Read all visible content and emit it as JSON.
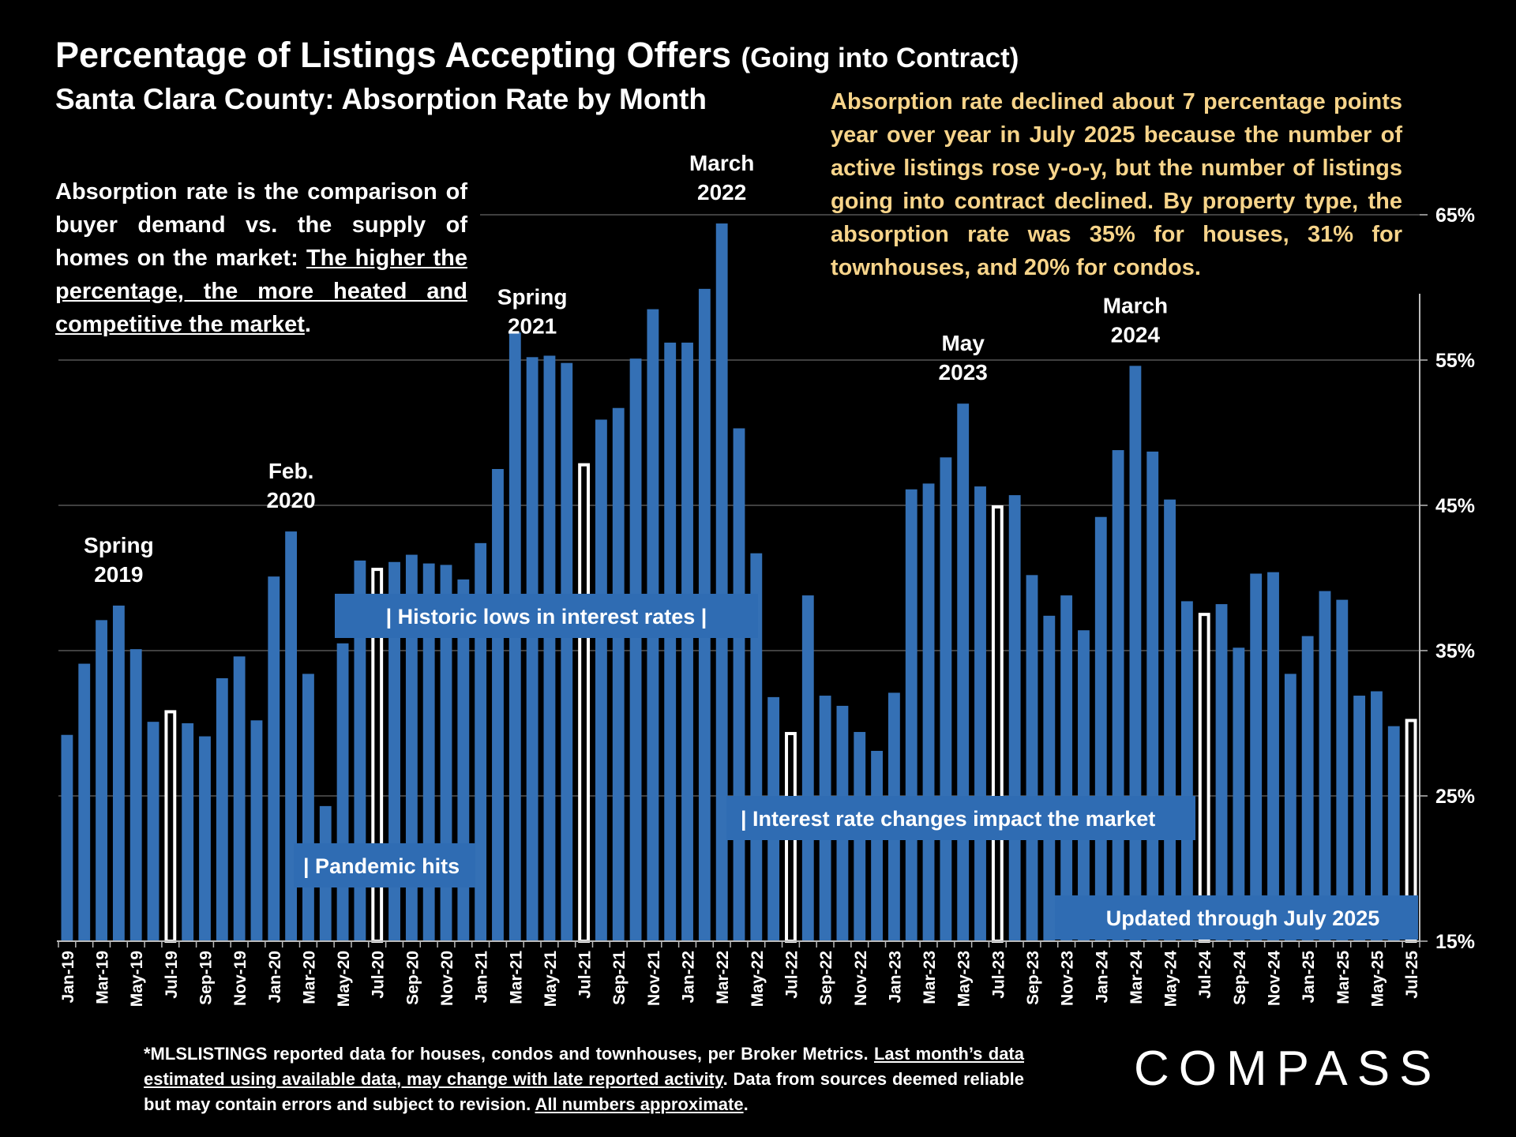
{
  "header": {
    "title": "Percentage of Listings Accepting Offers",
    "title_paren": "(Going into Contract)",
    "subtitle": "Santa Clara County:  Absorption Rate by Month"
  },
  "definition": {
    "lead": "Absorption rate is the comparison of buyer demand vs. the supply of homes on the market: ",
    "underlined": "The higher the percentage, the more heated and competitive the market",
    "tail": "."
  },
  "insight": "Absorption rate declined about 7 percentage points year over year in July 2025 because the number of active listings rose y-o-y, but the number of listings going into contract declined. By property type, the absorption rate was 35% for houses, 31% for townhouses, and 20% for condos.",
  "footnote": {
    "part1": "*MLSLISTINGS reported data for houses, condos and townhouses, per Broker Metrics. ",
    "part2_underlined": "Last month’s data estimated using available data, may change with late reported activity",
    "part3": ". Data from sources deemed reliable but may contain errors and subject to revision. ",
    "part4_underlined": "All numbers approximate",
    "part5": "."
  },
  "logo_text": "COMPASS",
  "colors": {
    "bar": "#3470b5",
    "highlight_bar": "#ffffff",
    "insight_text": "#f7d48a",
    "grid": "#555555",
    "banner": "#2f6cb3"
  },
  "chart_data": {
    "type": "bar",
    "title": "Santa Clara County:  Absorption Rate by Month",
    "ylim": [
      15,
      65
    ],
    "ytick_labels": [
      "15%",
      "25%",
      "35%",
      "45%",
      "55%",
      "65%"
    ],
    "y_axis_side": "right",
    "grid": true,
    "xtick_labels": [
      "Jan-19",
      "Mar-19",
      "May-19",
      "Jul-19",
      "Sep-19",
      "Nov-19",
      "Jan-20",
      "Mar-20",
      "May-20",
      "Jul-20",
      "Sep-20",
      "Nov-20",
      "Jan-21",
      "Mar-21",
      "May-21",
      "Jul-21",
      "Sep-21",
      "Nov-21",
      "Jan-22",
      "Mar-22",
      "May-22",
      "Jul-22",
      "Sep-22",
      "Nov-22",
      "Jan-23",
      "Mar-23",
      "May-23",
      "Jul-23",
      "Sep-23",
      "Nov-23",
      "Jan-24",
      "Mar-24",
      "May-24",
      "Jul-24",
      "Sep-24",
      "Nov-24",
      "Jan-25",
      "Mar-25",
      "May-25",
      "Jul-25"
    ],
    "categories": [
      "Jan-19",
      "Feb-19",
      "Mar-19",
      "Apr-19",
      "May-19",
      "Jun-19",
      "Jul-19",
      "Aug-19",
      "Sep-19",
      "Oct-19",
      "Nov-19",
      "Dec-19",
      "Jan-20",
      "Feb-20",
      "Mar-20",
      "Apr-20",
      "May-20",
      "Jun-20",
      "Jul-20",
      "Aug-20",
      "Sep-20",
      "Oct-20",
      "Nov-20",
      "Dec-20",
      "Jan-21",
      "Feb-21",
      "Mar-21",
      "Apr-21",
      "May-21",
      "Jun-21",
      "Jul-21",
      "Aug-21",
      "Sep-21",
      "Oct-21",
      "Nov-21",
      "Dec-21",
      "Jan-22",
      "Feb-22",
      "Mar-22",
      "Apr-22",
      "May-22",
      "Jun-22",
      "Jul-22",
      "Aug-22",
      "Sep-22",
      "Oct-22",
      "Nov-22",
      "Dec-22",
      "Jan-23",
      "Feb-23",
      "Mar-23",
      "Apr-23",
      "May-23",
      "Jun-23",
      "Jul-23",
      "Aug-23",
      "Sep-23",
      "Oct-23",
      "Nov-23",
      "Dec-23",
      "Jan-24",
      "Feb-24",
      "Mar-24",
      "Apr-24",
      "May-24",
      "Jun-24",
      "Jul-24",
      "Aug-24",
      "Sep-24",
      "Oct-24",
      "Nov-24",
      "Dec-24",
      "Jan-25",
      "Feb-25",
      "Mar-25",
      "Apr-25",
      "May-25",
      "Jun-25",
      "Jul-25"
    ],
    "values": [
      29.2,
      34.1,
      37.1,
      38.1,
      35.1,
      30.1,
      30.9,
      30.0,
      29.1,
      33.1,
      34.6,
      30.2,
      40.1,
      43.2,
      33.4,
      24.3,
      35.5,
      41.2,
      40.7,
      41.1,
      41.6,
      41.0,
      40.9,
      39.9,
      42.4,
      47.5,
      56.9,
      55.2,
      55.3,
      54.8,
      47.9,
      50.9,
      51.7,
      55.1,
      58.5,
      56.2,
      56.2,
      59.9,
      64.4,
      50.3,
      41.7,
      31.8,
      29.4,
      38.8,
      31.9,
      31.2,
      29.4,
      28.1,
      32.1,
      46.1,
      46.5,
      48.3,
      52.0,
      46.3,
      45.0,
      45.7,
      40.2,
      37.4,
      38.8,
      36.4,
      44.2,
      48.8,
      54.6,
      48.7,
      45.4,
      38.4,
      37.6,
      38.2,
      35.2,
      40.3,
      40.4,
      33.4,
      36.0,
      39.1,
      38.5,
      31.9,
      32.2,
      29.8,
      30.3
    ],
    "highlighted": [
      "Jul-19",
      "Jul-20",
      "Jul-21",
      "Jul-22",
      "Jul-23",
      "Jul-24",
      "Jul-25"
    ],
    "peak_labels": [
      {
        "lines": [
          "Spring",
          "2019"
        ],
        "month": "Apr-19"
      },
      {
        "lines": [
          "Feb.",
          "2020"
        ],
        "month": "Feb-20"
      },
      {
        "lines": [
          "Spring",
          "2021"
        ],
        "month": "Apr-21"
      },
      {
        "lines": [
          "March",
          "2022"
        ],
        "month": "Mar-22"
      },
      {
        "lines": [
          "May",
          "2023"
        ],
        "month": "May-23"
      },
      {
        "lines": [
          "March",
          "2024"
        ],
        "month": "Mar-24"
      }
    ],
    "banners": [
      {
        "text": "|   Historic lows in interest rates   |"
      },
      {
        "text": "| Pandemic hits"
      },
      {
        "text": "| Interest rate changes impact the market"
      },
      {
        "text": "Updated through July 2025"
      }
    ]
  }
}
